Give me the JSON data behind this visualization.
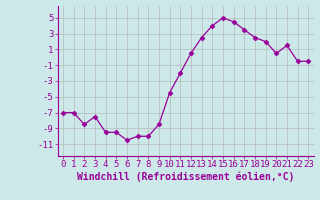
{
  "x": [
    0,
    1,
    2,
    3,
    4,
    5,
    6,
    7,
    8,
    9,
    10,
    11,
    12,
    13,
    14,
    15,
    16,
    17,
    18,
    19,
    20,
    21,
    22,
    23
  ],
  "y": [
    -7,
    -7,
    -8.5,
    -7.5,
    -9.5,
    -9.5,
    -10.5,
    -10,
    -10,
    -8.5,
    -4.5,
    -2,
    0.5,
    2.5,
    4,
    5,
    4.5,
    3.5,
    2.5,
    2,
    0.5,
    1.5,
    -0.5,
    -0.5
  ],
  "line_color": "#990099",
  "marker": "D",
  "marker_size": 2.5,
  "background_color": "#cde8e8",
  "grid_color": "#b0b0b0",
  "xlabel": "Windchill (Refroidissement éolien,°C)",
  "xlabel_fontsize": 7,
  "xtick_labels": [
    "0",
    "1",
    "2",
    "3",
    "4",
    "5",
    "6",
    "7",
    "8",
    "9",
    "10",
    "11",
    "12",
    "13",
    "14",
    "15",
    "16",
    "17",
    "18",
    "19",
    "20",
    "21",
    "22",
    "23"
  ],
  "ytick_values": [
    -11,
    -9,
    -7,
    -5,
    -3,
    -1,
    1,
    3,
    5
  ],
  "ylim": [
    -12.5,
    6.5
  ],
  "xlim": [
    -0.5,
    23.5
  ],
  "tick_fontsize": 6.5
}
